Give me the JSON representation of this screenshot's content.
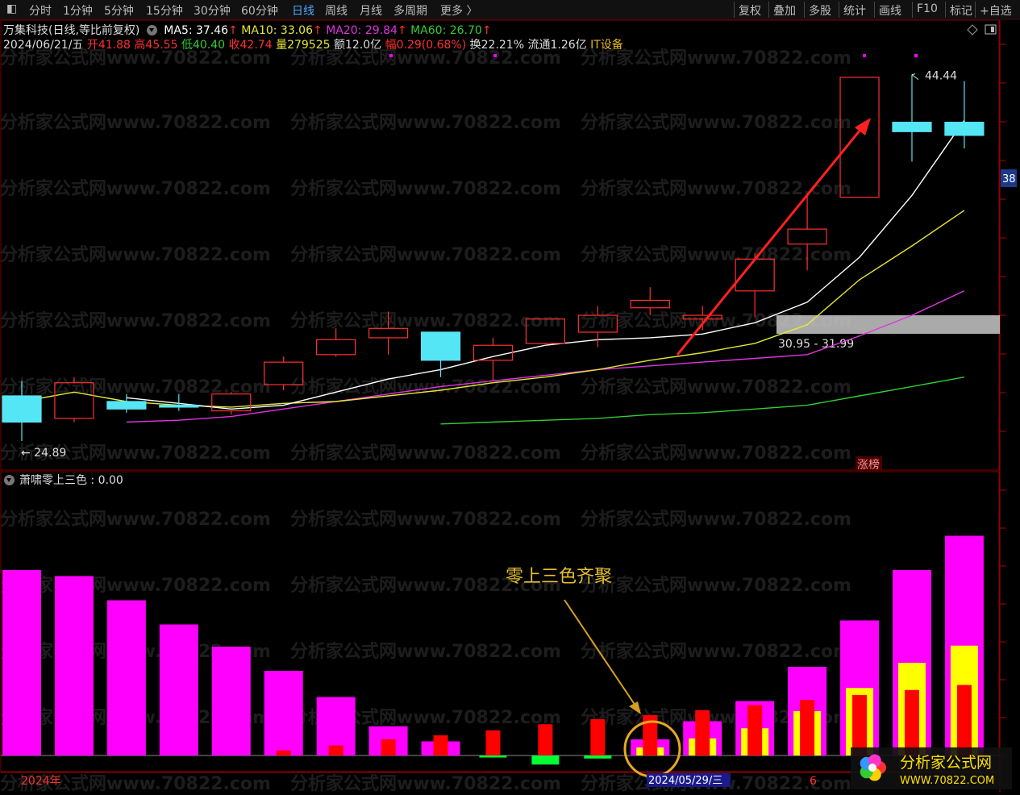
{
  "tabs": [
    "分时",
    "1分钟",
    "5分钟",
    "15分钟",
    "30分钟",
    "60分钟",
    "日线",
    "周线",
    "月线",
    "多周期",
    "更多 〉"
  ],
  "active_tab": "日线",
  "right_tabs": [
    "复权",
    "叠加",
    "多股",
    "统计",
    "画线",
    "F10",
    "标记",
    "+自选"
  ],
  "header": {
    "stock_title": "万集科技(日线,等比前复权)",
    "ma5": "MA5: 37.46",
    "ma10": "MA10: 33.06",
    "ma20": "MA20: 29.84",
    "ma60": "MA60: 26.70",
    "date": "2024/06/21/五",
    "open_label": "开",
    "open": "41.88",
    "high_label": "高",
    "high": "45.55",
    "low_label": "低",
    "low": "40.40",
    "close_label": "收",
    "close": "42.74",
    "vol_label": "量",
    "vol": "279525",
    "amount_label": "额",
    "amount": "12.0亿",
    "range_label": "幅",
    "range": "0.29(0.68%)",
    "turnover": "换22.21%",
    "float": "流通1.26亿",
    "sector": "IT设备"
  },
  "colors": {
    "up": "#ff3030",
    "down": "#55e6f5",
    "ma5": "#ffffff",
    "ma10": "#e6e636",
    "ma20": "#e033e0",
    "ma60": "#33cc33",
    "magenta": "#ff00ff",
    "red": "#ff0000",
    "yellow": "#ffff00",
    "green": "#00ff33",
    "ann": "#e6b822"
  },
  "watermark": "分析家公式网www.70822.com",
  "price_labels": {
    "high": "44.44",
    "low": "24.89",
    "zone": "30.95 - 31.99",
    "zhangbang": "涨榜",
    "right_edge": "38"
  },
  "indicator": {
    "label": "萧啸零上三色 : 0.00",
    "annotation": "零上三色齐聚"
  },
  "footer": {
    "year": "2024年",
    "date": "2024/05/29/三",
    "month": "6"
  },
  "logo": {
    "text": "分析家公式网",
    "url": "WWW.70822.COM"
  },
  "icons": [
    "expand-icon",
    "diamond-icon",
    "window-icon",
    "gear-icon",
    "sector-dot-icon"
  ],
  "chart_data": {
    "type": "candlestick",
    "candles": [
      {
        "o": 27.3,
        "h": 28.1,
        "l": 24.89,
        "c": 25.9
      },
      {
        "o": 26.1,
        "h": 28.3,
        "l": 25.9,
        "c": 28.0
      },
      {
        "o": 27.0,
        "h": 27.4,
        "l": 26.4,
        "c": 26.6
      },
      {
        "o": 26.8,
        "h": 27.4,
        "l": 26.5,
        "c": 26.7
      },
      {
        "o": 26.5,
        "h": 27.5,
        "l": 26.3,
        "c": 27.4
      },
      {
        "o": 27.9,
        "h": 29.4,
        "l": 27.6,
        "c": 29.1
      },
      {
        "o": 29.5,
        "h": 30.9,
        "l": 29.4,
        "c": 30.3
      },
      {
        "o": 30.4,
        "h": 31.8,
        "l": 29.5,
        "c": 30.9
      },
      {
        "o": 30.7,
        "h": 30.7,
        "l": 28.3,
        "c": 29.2
      },
      {
        "o": 29.2,
        "h": 30.4,
        "l": 28.1,
        "c": 30.0
      },
      {
        "o": 30.1,
        "h": 31.4,
        "l": 30.0,
        "c": 31.4
      },
      {
        "o": 30.7,
        "h": 32.1,
        "l": 29.9,
        "c": 31.6
      },
      {
        "o": 32.0,
        "h": 33.1,
        "l": 31.6,
        "c": 32.4
      },
      {
        "o": 31.4,
        "h": 32.1,
        "l": 30.8,
        "c": 31.6
      },
      {
        "o": 32.9,
        "h": 34.9,
        "l": 31.5,
        "c": 34.6
      },
      {
        "o": 35.4,
        "h": 38.1,
        "l": 34.0,
        "c": 36.2
      },
      {
        "o": 37.9,
        "h": 44.3,
        "l": 37.9,
        "c": 44.3
      },
      {
        "o": 41.9,
        "h": 44.44,
        "l": 39.8,
        "c": 41.4
      },
      {
        "o": 41.9,
        "h": 44.1,
        "l": 40.5,
        "c": 41.2
      }
    ],
    "ma5": [
      null,
      null,
      27.2,
      26.9,
      26.6,
      26.8,
      27.5,
      28.2,
      28.7,
      29.4,
      30.0,
      30.3,
      30.4,
      30.6,
      31.2,
      32.3,
      34.7,
      38.0,
      42.0
    ],
    "ma10": [
      27.0,
      27.5,
      27.0,
      26.8,
      26.7,
      26.9,
      27.0,
      27.3,
      27.6,
      28.0,
      28.3,
      28.7,
      29.2,
      29.6,
      30.1,
      31.1,
      33.5,
      35.3,
      37.2
    ],
    "ma20": [
      null,
      null,
      25.9,
      26.0,
      26.2,
      26.6,
      27.0,
      27.4,
      27.8,
      28.1,
      28.4,
      28.7,
      28.9,
      29.1,
      29.3,
      29.5,
      30.5,
      31.6,
      32.9
    ],
    "ma60": [
      null,
      null,
      null,
      null,
      null,
      null,
      null,
      null,
      25.8,
      25.9,
      26.0,
      26.1,
      26.3,
      26.4,
      26.6,
      26.8,
      27.3,
      27.8,
      28.3
    ],
    "indicator_bars": [
      {
        "m": 92,
        "r": 0,
        "y": 0,
        "g": 0
      },
      {
        "m": 89,
        "r": 0,
        "y": 0,
        "g": 0
      },
      {
        "m": 77,
        "r": 0,
        "y": 0,
        "g": 0
      },
      {
        "m": 65,
        "r": 0,
        "y": 0,
        "g": 0
      },
      {
        "m": 54,
        "r": 0,
        "y": 0,
        "g": 0
      },
      {
        "m": 42,
        "r": 2.5,
        "y": 0,
        "g": 0
      },
      {
        "m": 29,
        "r": 5,
        "y": 0,
        "g": 0
      },
      {
        "m": 14.5,
        "r": 8,
        "y": 0,
        "g": 0
      },
      {
        "m": 7,
        "r": 10,
        "y": 0,
        "g": 0
      },
      {
        "m": 0,
        "r": 12.5,
        "y": 0,
        "g": -1
      },
      {
        "m": 0,
        "r": 15.5,
        "y": 0,
        "g": -4.5
      },
      {
        "m": 0,
        "r": 18,
        "y": 0,
        "g": -1.5
      },
      {
        "m": 8,
        "r": 20,
        "y": 4,
        "g": 0
      },
      {
        "m": 17,
        "r": 22.5,
        "y": 8.5,
        "g": 0
      },
      {
        "m": 27,
        "r": 25,
        "y": 13.5,
        "g": 0
      },
      {
        "m": 44,
        "r": 27.5,
        "y": 22,
        "g": 0
      },
      {
        "m": 67,
        "r": 30,
        "y": 33.5,
        "g": 0
      },
      {
        "m": 92,
        "r": 32.5,
        "y": 46,
        "g": 0
      },
      {
        "m": 109,
        "r": 35,
        "y": 54.5,
        "g": 0
      }
    ]
  }
}
